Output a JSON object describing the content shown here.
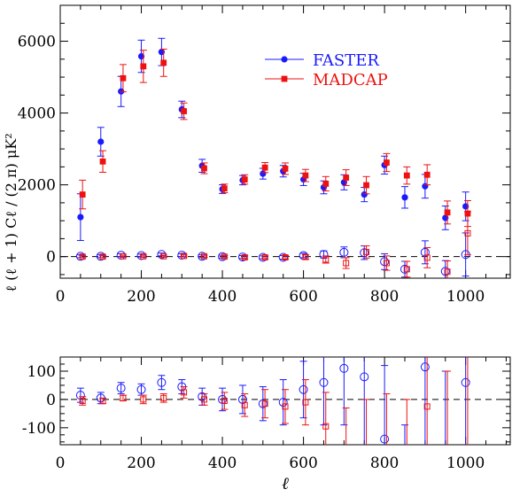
{
  "colors": {
    "faster": "#1a1aff",
    "madcap": "#ee1111",
    "axis": "#000000",
    "zero_line": "#000000"
  },
  "chart_data": [
    {
      "type": "scatter",
      "panel": "top",
      "ylabel": "ℓ (ℓ + 1)  Cℓ / (2 π)  μK²",
      "xlabel": "",
      "xlim": [
        0,
        1110
      ],
      "ylim": [
        -600,
        7000
      ],
      "xticks": [
        0,
        200,
        400,
        600,
        800,
        1000
      ],
      "yticks": [
        0,
        2000,
        4000,
        6000
      ],
      "grid": false,
      "zero_line": "dashed",
      "legend": {
        "placement": "top-right",
        "entries": [
          "FASTER",
          "MADCAP"
        ]
      },
      "series": [
        {
          "name": "FASTER",
          "marker": "filled-circle",
          "x": [
            50,
            100,
            150,
            200,
            250,
            300,
            350,
            400,
            450,
            500,
            550,
            600,
            650,
            700,
            750,
            800,
            850,
            900,
            950,
            1000
          ],
          "y": [
            1100,
            3200,
            4600,
            5580,
            5700,
            4100,
            2530,
            1880,
            2130,
            2310,
            2380,
            2150,
            1930,
            2070,
            1730,
            2550,
            1650,
            1960,
            1080,
            1400
          ],
          "err": [
            650,
            400,
            420,
            450,
            380,
            230,
            180,
            120,
            130,
            150,
            160,
            170,
            180,
            210,
            200,
            250,
            300,
            330,
            330,
            400
          ]
        },
        {
          "name": "MADCAP",
          "marker": "filled-square",
          "x": [
            55,
            105,
            155,
            205,
            255,
            305,
            355,
            405,
            455,
            505,
            555,
            605,
            655,
            705,
            755,
            805,
            855,
            905,
            955,
            1005
          ],
          "y": [
            1730,
            2650,
            4970,
            5300,
            5400,
            4050,
            2460,
            1900,
            2150,
            2480,
            2450,
            2260,
            2030,
            2200,
            1990,
            2620,
            2260,
            2280,
            1230,
            1200
          ],
          "err": [
            400,
            300,
            380,
            450,
            380,
            230,
            150,
            120,
            130,
            140,
            160,
            170,
            200,
            220,
            240,
            250,
            240,
            280,
            320,
            360
          ]
        },
        {
          "name": "FASTER",
          "marker": "open-circle",
          "x": [
            50,
            100,
            150,
            200,
            250,
            300,
            350,
            400,
            450,
            500,
            550,
            600,
            650,
            700,
            750,
            800,
            850,
            900,
            950,
            1000
          ],
          "y": [
            10,
            10,
            40,
            30,
            60,
            40,
            10,
            0,
            -10,
            -20,
            -20,
            30,
            60,
            120,
            110,
            -140,
            -350,
            120,
            -410,
            60
          ],
          "err": [
            40,
            40,
            40,
            40,
            40,
            40,
            40,
            40,
            40,
            40,
            50,
            60,
            100,
            150,
            190,
            220,
            220,
            320,
            300,
            600
          ]
        },
        {
          "name": "MADCAP",
          "marker": "open-square",
          "x": [
            55,
            105,
            155,
            205,
            255,
            305,
            355,
            405,
            455,
            505,
            555,
            605,
            655,
            705,
            755,
            805,
            855,
            905,
            955,
            1005
          ],
          "y": [
            0,
            0,
            10,
            10,
            10,
            20,
            10,
            0,
            -20,
            -20,
            -20,
            -10,
            -80,
            -180,
            130,
            -180,
            -350,
            -30,
            -420,
            650
          ],
          "err": [
            30,
            30,
            30,
            30,
            30,
            30,
            30,
            30,
            40,
            40,
            50,
            60,
            100,
            150,
            170,
            200,
            220,
            280,
            300,
            600
          ]
        }
      ]
    },
    {
      "type": "scatter",
      "panel": "bottom",
      "xlabel": "ℓ",
      "ylabel": "",
      "xlim": [
        0,
        1110
      ],
      "ylim": [
        -160,
        150
      ],
      "xticks": [
        0,
        200,
        400,
        600,
        800,
        1000
      ],
      "yticks": [
        -100,
        0,
        100
      ],
      "grid": false,
      "zero_line": "dashed",
      "series": [
        {
          "name": "FASTER",
          "marker": "open-circle",
          "x": [
            50,
            100,
            150,
            200,
            250,
            300,
            350,
            400,
            450,
            500,
            550,
            600,
            650,
            700,
            750,
            800,
            850,
            900,
            950,
            1000
          ],
          "y": [
            15,
            5,
            40,
            35,
            60,
            45,
            10,
            0,
            0,
            -15,
            -10,
            35,
            60,
            110,
            80,
            -140,
            -200,
            115,
            -200,
            60
          ],
          "err": [
            25,
            20,
            20,
            20,
            25,
            25,
            30,
            40,
            50,
            60,
            80,
            100,
            150,
            200,
            250,
            260,
            110,
            300,
            300,
            700
          ]
        },
        {
          "name": "MADCAP",
          "marker": "open-square",
          "x": [
            55,
            105,
            155,
            205,
            255,
            305,
            355,
            405,
            455,
            505,
            555,
            605,
            655,
            705,
            755,
            805,
            855,
            905,
            955,
            1005
          ],
          "y": [
            -5,
            -5,
            5,
            0,
            5,
            25,
            0,
            -5,
            -20,
            -15,
            -25,
            -10,
            -95,
            -180,
            -200,
            -200,
            -200,
            -25,
            -200,
            -200
          ],
          "err": [
            15,
            10,
            10,
            15,
            15,
            20,
            20,
            30,
            40,
            50,
            60,
            80,
            120,
            150,
            200,
            220,
            200,
            300,
            300,
            400
          ]
        }
      ]
    }
  ]
}
